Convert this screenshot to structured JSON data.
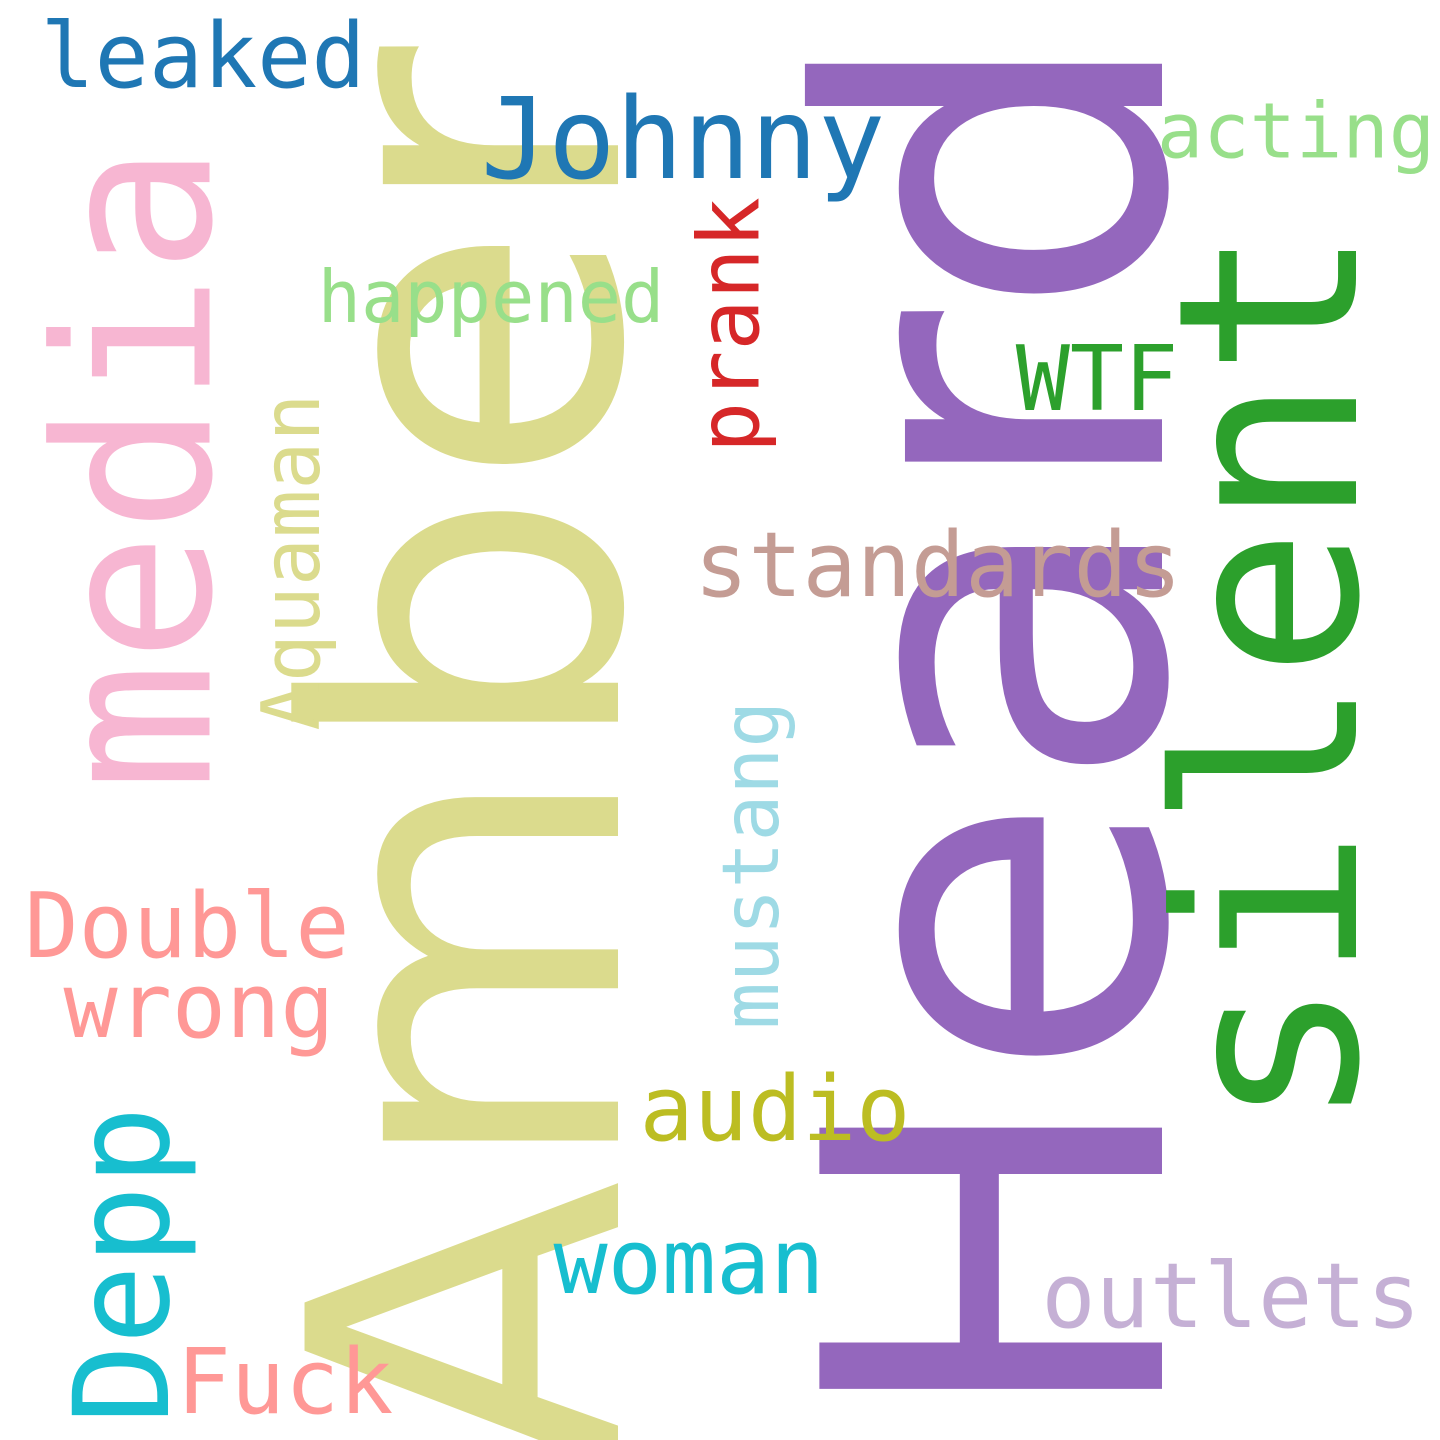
{
  "words": [
    {
      "text": "Heard",
      "color": "#9467bd"
    },
    {
      "text": "Amber",
      "color": "#dbdb8d"
    },
    {
      "text": "silent",
      "color": "#2ca02c"
    },
    {
      "text": "media",
      "color": "#f7b6d2"
    },
    {
      "text": "Johnny",
      "color": "#1f77b4"
    },
    {
      "text": "leaked",
      "color": "#1f77b4"
    },
    {
      "text": "acting",
      "color": "#98df8a"
    },
    {
      "text": "happened",
      "color": "#98df8a"
    },
    {
      "text": "prank",
      "color": "#d62728"
    },
    {
      "text": "WTF",
      "color": "#2ca02c"
    },
    {
      "text": "Aquaman",
      "color": "#dbdb8d"
    },
    {
      "text": "standards",
      "color": "#c49c94"
    },
    {
      "text": "mustang",
      "color": "#9edae5"
    },
    {
      "text": "Double",
      "color": "#ff9896"
    },
    {
      "text": "wrong",
      "color": "#ff9896"
    },
    {
      "text": "audio",
      "color": "#bcbd22"
    },
    {
      "text": "Depp",
      "color": "#17becf"
    },
    {
      "text": "woman",
      "color": "#17becf"
    },
    {
      "text": "outlets",
      "color": "#c5b0d5"
    },
    {
      "text": "Fuck",
      "color": "#ff9896"
    }
  ]
}
